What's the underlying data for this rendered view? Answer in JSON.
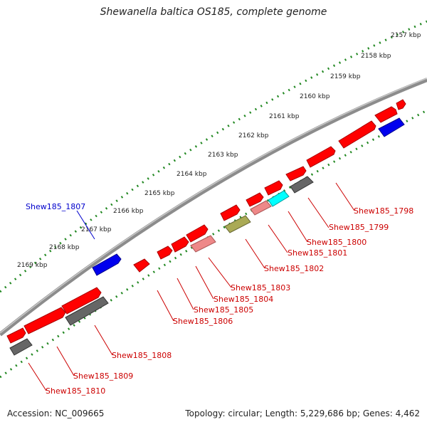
{
  "title": "Shewanella baltica OS185, complete genome",
  "accession": "Accession: NC_009665",
  "summary": "Topology: circular; Length: 5,229,686 bp; Genes: 4,462",
  "colors": {
    "backbone": "#8c8c8c",
    "gene_red": "#ff0000",
    "gene_pink": "#ee8888",
    "gene_gray": "#666666",
    "gene_blue": "#0000ee",
    "gene_cyan": "#00ffff",
    "gene_olive": "#aaaa55",
    "tick_green": "#228822",
    "label_red": "#cc0000",
    "label_blue": "#0000cc"
  },
  "kbp_labels": [
    "2157 kbp",
    "2158 kbp",
    "2159 kbp",
    "2160 kbp",
    "2161 kbp",
    "2162 kbp",
    "2163 kbp",
    "2164 kbp",
    "2165 kbp",
    "2166 kbp",
    "2167 kbp",
    "2168 kbp",
    "2169 kbp"
  ],
  "gene_labels": [
    {
      "text": "Shew185_1798",
      "color": "red"
    },
    {
      "text": "Shew185_1799",
      "color": "red"
    },
    {
      "text": "Shew185_1800",
      "color": "red"
    },
    {
      "text": "Shew185_1801",
      "color": "red"
    },
    {
      "text": "Shew185_1802",
      "color": "red"
    },
    {
      "text": "Shew185_1803",
      "color": "red"
    },
    {
      "text": "Shew185_1804",
      "color": "red"
    },
    {
      "text": "Shew185_1805",
      "color": "red"
    },
    {
      "text": "Shew185_1806",
      "color": "red"
    },
    {
      "text": "Shew185_1807",
      "color": "blue"
    },
    {
      "text": "Shew185_1808",
      "color": "red"
    },
    {
      "text": "Shew185_1809",
      "color": "red"
    },
    {
      "text": "Shew185_1810",
      "color": "red"
    }
  ]
}
